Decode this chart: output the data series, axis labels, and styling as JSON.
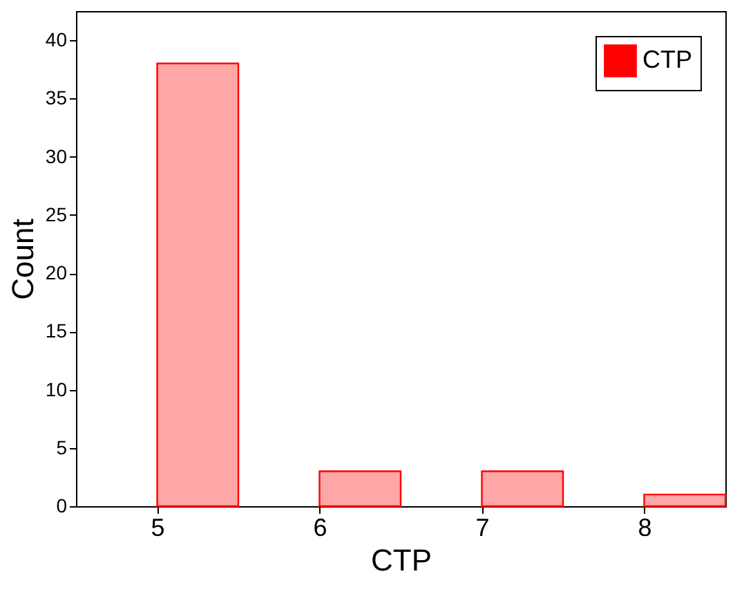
{
  "chart_data": {
    "type": "bar",
    "xlabel": "CTP",
    "ylabel": "Count",
    "x": [
      5.25,
      6.25,
      7.25,
      8.25
    ],
    "series": [
      {
        "name": "CTP",
        "color": "#ff0000",
        "values": [
          38,
          3,
          3,
          1
        ]
      }
    ],
    "xlim": [
      4.5,
      8.5
    ],
    "xticks": [
      5,
      6,
      7,
      8
    ],
    "ylim": [
      0,
      42.5
    ],
    "yticks": [
      0,
      5,
      10,
      15,
      20,
      25,
      30,
      35,
      40
    ],
    "grid": false,
    "legend": "top right"
  }
}
